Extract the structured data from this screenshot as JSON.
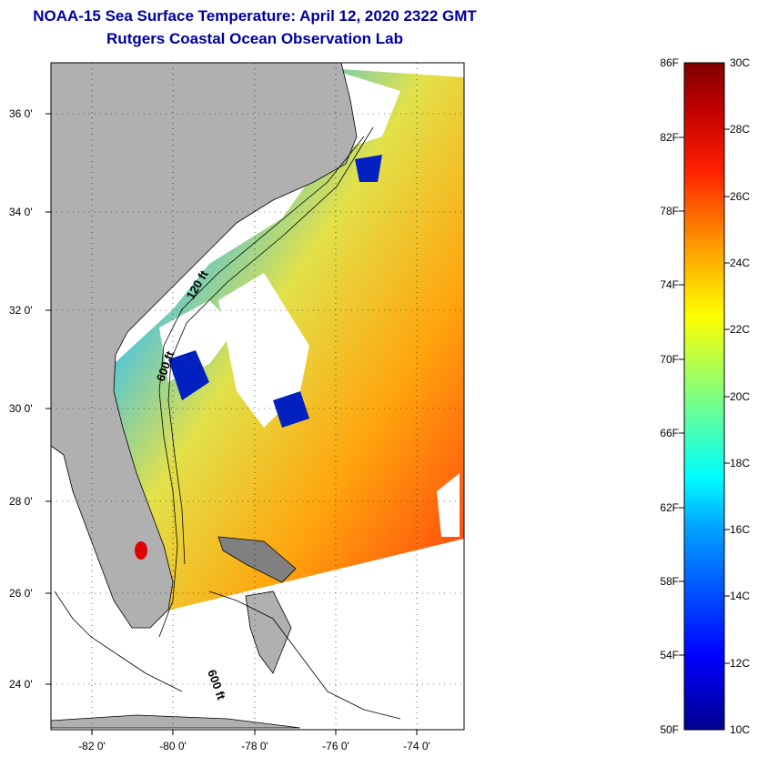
{
  "title": "NOAA-15 Sea Surface Temperature:  April 12, 2020 2322 GMT",
  "subtitle": "Rutgers Coastal Ocean Observation Lab",
  "map": {
    "lat_ticks": [
      "36 0'",
      "34 0'",
      "32 0'",
      "30 0'",
      "28 0'",
      "26 0'",
      "24 0'"
    ],
    "lon_ticks": [
      "-82 0'",
      "-80 0'",
      "-78 0'",
      "-76 0'",
      "-74 0'"
    ],
    "isobath_labels": [
      "120 ft",
      "600 ft",
      "600 ft"
    ],
    "colors": {
      "land": "#b0b0b0",
      "cloud": "#ffffff",
      "frame": "#000000",
      "title": "#0000a0"
    }
  },
  "colorbar": {
    "fahrenheit_labels": [
      "86F",
      "82F",
      "78F",
      "74F",
      "70F",
      "66F",
      "62F",
      "58F",
      "54F",
      "50F"
    ],
    "celsius_labels": [
      "30C",
      "28C",
      "26C",
      "24C",
      "22C",
      "20C",
      "18C",
      "16C",
      "14C",
      "12C",
      "10C"
    ],
    "colors": [
      "#00008f",
      "#0000ff",
      "#00a0ff",
      "#00ffff",
      "#80ff80",
      "#ffff00",
      "#ffa000",
      "#ff2000",
      "#c00000",
      "#800000"
    ]
  }
}
